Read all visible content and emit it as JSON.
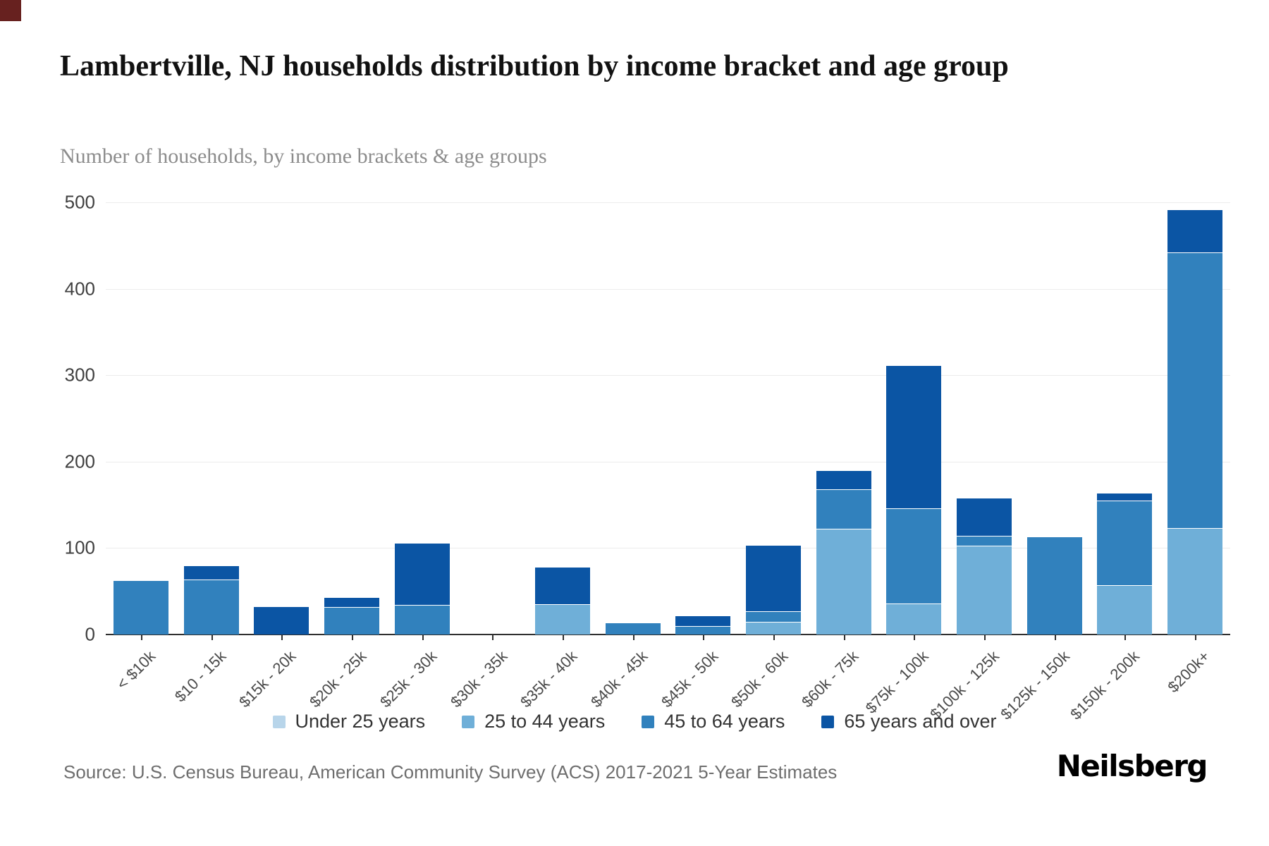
{
  "page": {
    "title": "Lambertville, NJ households distribution by income bracket and age group",
    "subtitle": "Number of households, by income brackets & age groups",
    "source": "Source: U.S. Census Bureau, American Community Survey (ACS) 2017-2021 5-Year Estimates",
    "brand": "Neilsberg"
  },
  "colors": {
    "under_25": "#b8d5ea",
    "age_25_44": "#6fafd8",
    "age_45_64": "#3181bd",
    "age_65_over": "#0b55a4",
    "axis": "#2f2f2f",
    "grid": "#ececec",
    "corner_square": "#67211f"
  },
  "legend": {
    "items": [
      {
        "label": "Under 25 years",
        "color": "#b8d5ea"
      },
      {
        "label": "25 to 44 years",
        "color": "#6fafd8"
      },
      {
        "label": "45 to 64 years",
        "color": "#3181bd"
      },
      {
        "label": "65 years and over",
        "color": "#0b55a4"
      }
    ]
  },
  "chart_data": {
    "type": "bar",
    "stacked": true,
    "title": "Lambertville, NJ households distribution by income bracket and age group",
    "xlabel": "Income bracket",
    "ylabel": "Number of households",
    "ylim": [
      0,
      500
    ],
    "yticks": [
      0,
      100,
      200,
      300,
      400,
      500
    ],
    "grid": true,
    "legend_position": "bottom",
    "categories": [
      "< $10k",
      "$10 - 15k",
      "$15k - 20k",
      "$20k - 25k",
      "$25k - 30k",
      "$30k - 35k",
      "$35k - 40k",
      "$40k - 45k",
      "$45k - 50k",
      "$50k - 60k",
      "$60k - 75k",
      "$75k - 100k",
      "$100k - 125k",
      "$125k - 150k",
      "$150k - 200k",
      "$200k+"
    ],
    "series": [
      {
        "name": "Under 25 years",
        "color": "#b8d5ea",
        "values": [
          0,
          0,
          0,
          0,
          0,
          0,
          0,
          0,
          0,
          0,
          0,
          0,
          0,
          0,
          0,
          0
        ]
      },
      {
        "name": "25 to 44 years",
        "color": "#6fafd8",
        "values": [
          0,
          0,
          0,
          0,
          0,
          0,
          35,
          0,
          0,
          15,
          122,
          36,
          103,
          0,
          57,
          123
        ]
      },
      {
        "name": "45 to 64 years",
        "color": "#3181bd",
        "values": [
          63,
          64,
          0,
          32,
          34,
          0,
          0,
          14,
          10,
          12,
          46,
          110,
          11,
          113,
          98,
          319
        ]
      },
      {
        "name": "65 years and over",
        "color": "#0b55a4",
        "values": [
          0,
          16,
          33,
          11,
          72,
          0,
          43,
          0,
          12,
          77,
          22,
          166,
          44,
          0,
          9,
          50
        ]
      }
    ],
    "totals": [
      63,
      80,
      33,
      43,
      106,
      0,
      78,
      14,
      22,
      104,
      190,
      312,
      158,
      113,
      164,
      492
    ]
  }
}
